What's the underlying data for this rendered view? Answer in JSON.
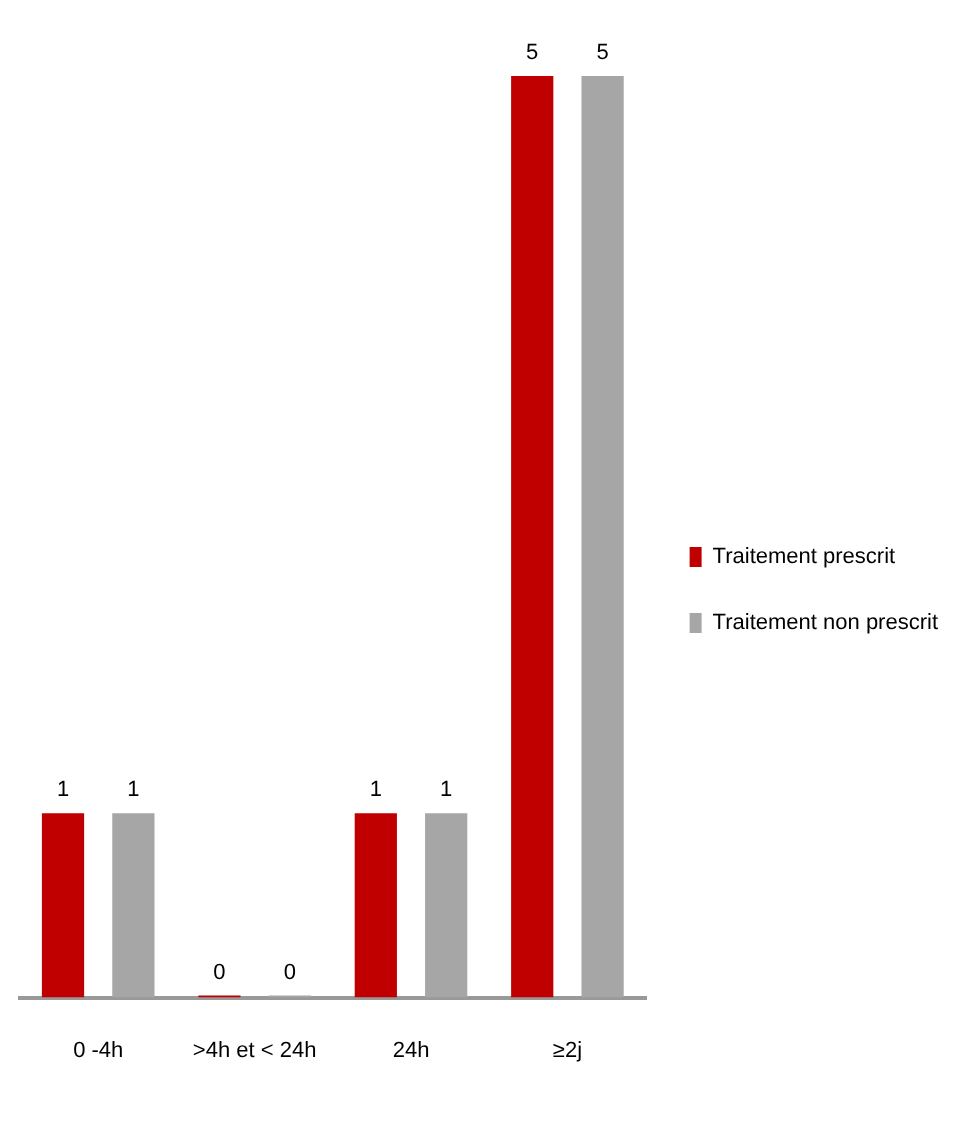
{
  "chart_data": {
    "type": "bar",
    "categories": [
      "0 -4h",
      ">4h et < 24h",
      "24h",
      "≥2j"
    ],
    "series": [
      {
        "name": "Traitement prescrit",
        "color": "#c00000",
        "values": [
          1,
          0,
          1,
          5
        ]
      },
      {
        "name": "Traitement non prescrit",
        "color": "#a6a6a6",
        "values": [
          1,
          0,
          1,
          5
        ]
      }
    ],
    "data_labels": true,
    "legend": "right",
    "grid": false
  }
}
